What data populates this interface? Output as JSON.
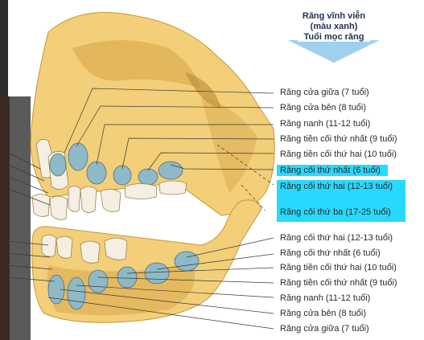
{
  "legend": {
    "line1": "Răng vĩnh viễn",
    "line2": "(màu xanh)",
    "line3": "Tuổi mọc răng"
  },
  "upper_labels": [
    "Răng cửa giữa (7 tuổi)",
    "Răng cửa bên (8 tuổi)",
    "Răng nanh (11-12 tuổi)",
    "Răng tiền cối thứ nhất (9 tuổi)",
    "Răng tiền cối thứ hai (10 tuổi)",
    "Răng cối thứ nhất (6 tuổi)",
    "Răng cối thứ hai (12-13 tuổi)",
    "Răng cối thứ ba (17-25 tuổi)"
  ],
  "lower_labels": [
    "Răng cối thứ hai (12-13 tuổi)",
    "Răng cối thứ nhất (6 tuổi)",
    "Răng tiền cối thứ hai (10 tuổi)",
    "Răng tiền cối thứ nhất (9 tuổi)",
    "Răng nanh (11-12 tuổi)",
    "Răng cửa bên (8 tuổi)",
    "Răng cửa giữa (7 tuổi)"
  ],
  "colors": {
    "bone": "#f2cf78",
    "bone_shadow": "#d8a84a",
    "permanent_tooth": "#8fb9c6",
    "primary_tooth": "#f4efe2",
    "highlight": "#27d9ff",
    "arrow": "#9fd0ee"
  }
}
